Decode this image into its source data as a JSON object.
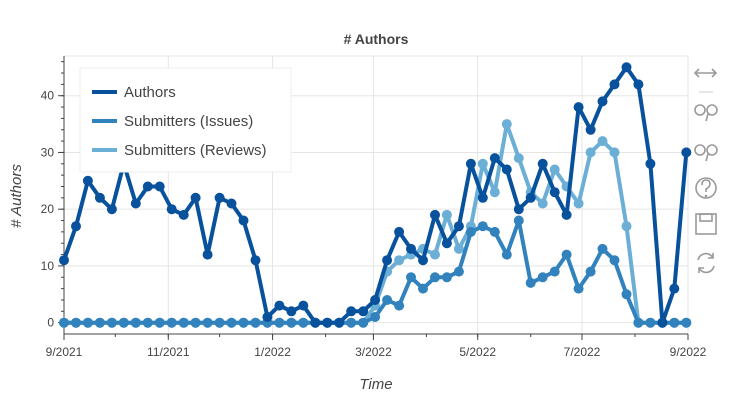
{
  "chart_data": {
    "type": "line",
    "title": "# Authors",
    "xlabel": "Time",
    "ylabel": "# Authors",
    "x_ticks": [
      "9/2021",
      "11/2021",
      "1/2022",
      "3/2022",
      "5/2022",
      "7/2022",
      "9/2022"
    ],
    "x_range": [
      "2021-09-01",
      "2022-09-01"
    ],
    "y_ticks": [
      "0",
      "10",
      "20",
      "30",
      "40"
    ],
    "ylim": [
      -2,
      47
    ],
    "grid": true,
    "legend_placement": "top-left",
    "x": [
      "2021-09-01",
      "2021-09-08",
      "2021-09-15",
      "2021-09-22",
      "2021-09-29",
      "2021-10-06",
      "2021-10-13",
      "2021-10-20",
      "2021-10-27",
      "2021-11-03",
      "2021-11-10",
      "2021-11-17",
      "2021-11-24",
      "2021-12-01",
      "2021-12-08",
      "2021-12-15",
      "2021-12-22",
      "2021-12-29",
      "2022-01-05",
      "2022-01-12",
      "2022-01-19",
      "2022-01-26",
      "2022-02-02",
      "2022-02-09",
      "2022-02-16",
      "2022-02-23",
      "2022-03-02",
      "2022-03-09",
      "2022-03-16",
      "2022-03-23",
      "2022-03-30",
      "2022-04-06",
      "2022-04-13",
      "2022-04-20",
      "2022-04-27",
      "2022-05-04",
      "2022-05-11",
      "2022-05-18",
      "2022-05-25",
      "2022-06-01",
      "2022-06-08",
      "2022-06-15",
      "2022-06-22",
      "2022-06-29",
      "2022-07-06",
      "2022-07-13",
      "2022-07-20",
      "2022-07-27",
      "2022-08-03",
      "2022-08-10",
      "2022-08-17",
      "2022-08-24",
      "2022-08-31"
    ],
    "series": [
      {
        "name": "Authors",
        "color": "#08519c",
        "values": [
          11,
          17,
          25,
          22,
          20,
          28,
          21,
          24,
          24,
          20,
          19,
          22,
          12,
          22,
          21,
          18,
          11,
          1,
          3,
          2,
          3,
          0,
          0,
          0,
          2,
          2,
          4,
          11,
          16,
          13,
          11,
          19,
          14,
          17,
          28,
          22,
          29,
          27,
          20,
          22,
          28,
          23,
          19,
          38,
          34,
          39,
          42,
          45,
          42,
          28,
          0,
          6,
          30
        ]
      },
      {
        "name": "Submitters (Issues)",
        "color": "#3182bd",
        "values": [
          0,
          0,
          0,
          0,
          0,
          0,
          0,
          0,
          0,
          0,
          0,
          0,
          0,
          0,
          0,
          0,
          0,
          0,
          0,
          0,
          0,
          0,
          0,
          0,
          0,
          0,
          1,
          4,
          3,
          8,
          6,
          8,
          8,
          9,
          16,
          17,
          16,
          12,
          18,
          7,
          8,
          9,
          12,
          6,
          9,
          13,
          11,
          5,
          0,
          0,
          0,
          0,
          0
        ]
      },
      {
        "name": "Submitters (Reviews)",
        "color": "#6baed6",
        "values": [
          0,
          0,
          0,
          0,
          0,
          0,
          0,
          0,
          0,
          0,
          0,
          0,
          0,
          0,
          0,
          0,
          0,
          0,
          0,
          0,
          0,
          0,
          0,
          0,
          0,
          0,
          3,
          9,
          11,
          12,
          13,
          12,
          19,
          13,
          17,
          28,
          23,
          35,
          29,
          23,
          21,
          27,
          24,
          21,
          30,
          32,
          30,
          17,
          0,
          0,
          0,
          0,
          0
        ]
      }
    ]
  },
  "toolbar": {
    "icons": [
      "pan-icon",
      "box-zoom-icon",
      "wheel-zoom-icon",
      "help-icon",
      "save-icon",
      "reset-icon"
    ]
  }
}
